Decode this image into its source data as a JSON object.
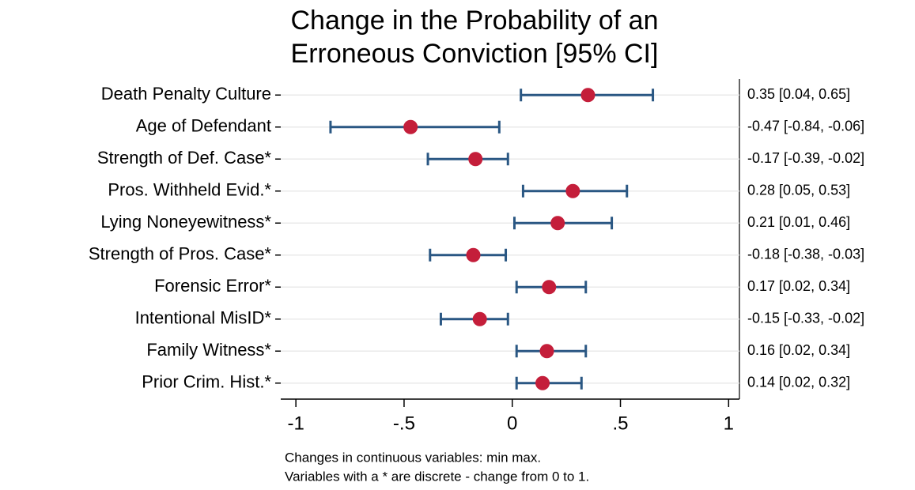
{
  "chart_data": {
    "type": "dot-ci",
    "title": [
      "Change in the Probability of an",
      "Erroneous Conviction [95% CI]"
    ],
    "categories": [
      "Death Penalty Culture",
      "Age of Defendant",
      "Strength of Def. Case*",
      "Pros. Withheld Evid.*",
      "Lying Noneyewitness*",
      "Strength of Pros. Case*",
      "Forensic Error*",
      "Intentional MisID*",
      "Family Witness*",
      "Prior Crim. Hist.*"
    ],
    "values": [
      0.35,
      -0.47,
      -0.17,
      0.28,
      0.21,
      -0.18,
      0.17,
      -0.15,
      0.16,
      0.14
    ],
    "ci_low": [
      0.04,
      -0.84,
      -0.39,
      0.05,
      0.01,
      -0.38,
      0.02,
      -0.33,
      0.02,
      0.02
    ],
    "ci_high": [
      0.65,
      -0.06,
      -0.02,
      0.53,
      0.46,
      -0.03,
      0.34,
      -0.02,
      0.34,
      0.32
    ],
    "value_labels": [
      "0.35 [0.04, 0.65]",
      "-0.47 [-0.84, -0.06]",
      "-0.17 [-0.39, -0.02]",
      "0.28 [0.05, 0.53]",
      "0.21 [0.01, 0.46]",
      "-0.18 [-0.38, -0.03]",
      "0.17 [0.02, 0.34]",
      "-0.15 [-0.33, -0.02]",
      "0.16 [0.02, 0.34]",
      "0.14 [0.02, 0.32]"
    ],
    "xlim": [
      -1.07,
      1.05
    ],
    "xticks": [
      -1,
      {
        "value": -0.5,
        "label": "-.5"
      },
      0,
      {
        "value": 0.5,
        "label": ".5"
      },
      1
    ],
    "grid": true,
    "point_color": "#c41e3a",
    "ci_color": "#2a5783",
    "notes": [
      "Changes in continuous variables: min max.",
      "Variables with a * are discrete - change from 0 to 1."
    ]
  }
}
